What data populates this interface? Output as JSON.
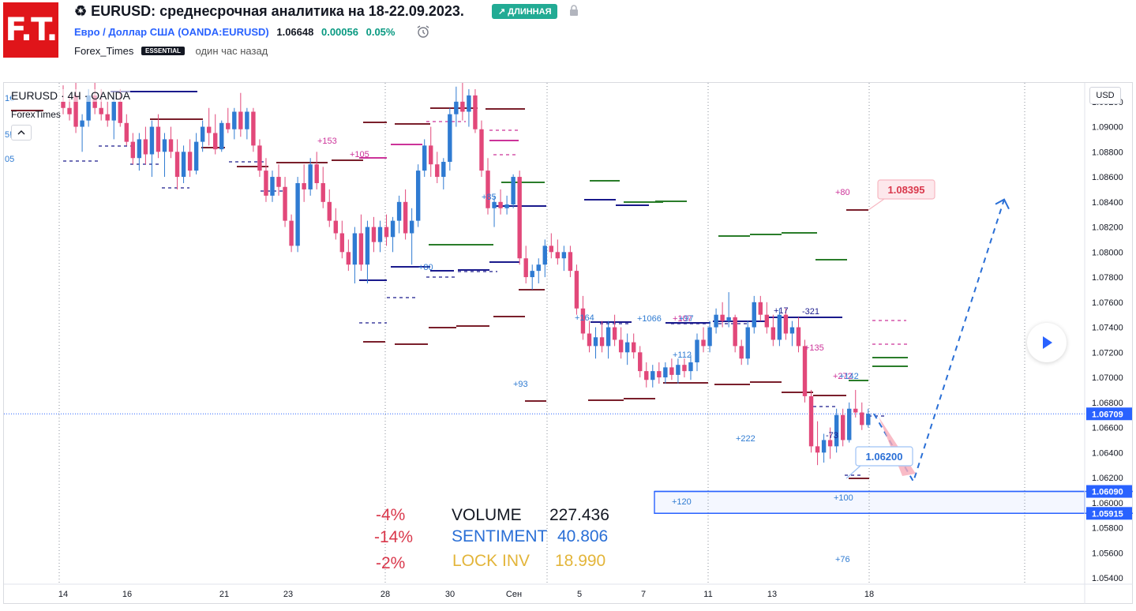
{
  "header": {
    "logo_text": "F.T.",
    "title": "♻ EURUSD: среднесрочная аналитика на 18-22.09.2023.",
    "badge": "↗ ДЛИННАЯ",
    "symbol_name": "Евро / Доллар США",
    "ticker": "(OANDA:EURUSD)",
    "price": "1.06648",
    "change": "0.00056",
    "change_pct": "0.05%",
    "author": "Forex_Times",
    "author_badge": "ESSENTIAL",
    "posted": "один час назад"
  },
  "chart_overlay": {
    "symbol_label": "EURUSD · 4Ч · OANDA",
    "author_label": "ForexTimes",
    "currency_button": "USD",
    "left_fragments": [
      "1€",
      "5!",
      "05"
    ]
  },
  "colors": {
    "up": "#2f7bd2",
    "down": "#e2487a",
    "price_line": "#2962ff",
    "navy": "#1a1a8c",
    "maroon": "#7a1f2b",
    "green": "#2a7d2a",
    "magenta": "#cc3399",
    "projection": "#2a6fd6"
  },
  "chart_data": {
    "type": "candlestick",
    "timeframe": "4Ч",
    "ylim": [
      1.0535,
      1.0935
    ],
    "y_ticks": [
      "1.09200",
      "1.09000",
      "1.08800",
      "1.08600",
      "1.08400",
      "1.08200",
      "1.08000",
      "1.07800",
      "1.07600",
      "1.07400",
      "1.07200",
      "1.07000",
      "1.06800",
      "1.06600",
      "1.06400",
      "1.06200",
      "1.06000",
      "1.05800",
      "1.05600",
      "1.05400"
    ],
    "x_ticks": [
      "14",
      "16",
      "21",
      "23",
      "28",
      "30",
      "Сен",
      "5",
      "7",
      "11",
      "13",
      "18"
    ],
    "current_price": "1.06709",
    "zone": {
      "upper": "1.06090",
      "lower": "1.05915",
      "upper_value": 1.0609,
      "lower_value": 1.05915
    },
    "callouts": [
      {
        "text": "1.08395",
        "value": 1.08395
      },
      {
        "text": "1.06200",
        "value": 1.062
      }
    ],
    "projection": [
      {
        "date": "2023-09-18",
        "value": 1.0671
      },
      {
        "date": "2023-09-19",
        "value": 1.0617
      },
      {
        "date": "2023-09-22",
        "value": 1.0842
      }
    ],
    "level_labels": [
      {
        "text": "+153",
        "color": "#cc3399"
      },
      {
        "text": "+105",
        "color": "#cc3399"
      },
      {
        "text": "+85",
        "color": "#2f7bd2"
      },
      {
        "text": "+80",
        "color": "#2f7bd2"
      },
      {
        "text": "+164",
        "color": "#2f7bd2"
      },
      {
        "text": "+1066",
        "color": "#2f7bd2"
      },
      {
        "text": "+107",
        "color": "#cc3399"
      },
      {
        "text": "+97",
        "color": "#2f7bd2"
      },
      {
        "text": "+112",
        "color": "#2f7bd2"
      },
      {
        "text": "+93",
        "color": "#2f7bd2"
      },
      {
        "text": "+222",
        "color": "#2f7bd2"
      },
      {
        "text": "+17",
        "color": "#1a1a8c"
      },
      {
        "text": "-321",
        "color": "#1a1a8c"
      },
      {
        "text": "+135",
        "color": "#cc3399"
      },
      {
        "text": "+272",
        "color": "#cc3399"
      },
      {
        "text": "+142",
        "color": "#2f7bd2"
      },
      {
        "text": "-73",
        "color": "#1a1a8c"
      },
      {
        "text": "+80",
        "color": "#cc3399"
      },
      {
        "text": "+120",
        "color": "#2f7bd2"
      },
      {
        "text": "+100",
        "color": "#2f7bd2"
      },
      {
        "text": "+76",
        "color": "#2f7bd2"
      }
    ],
    "candles": [
      {
        "o": 1.092,
        "h": 1.0933,
        "l": 1.091,
        "c": 1.0915
      },
      {
        "o": 1.0915,
        "h": 1.0925,
        "l": 1.0905,
        "c": 1.091
      },
      {
        "o": 1.0925,
        "h": 1.0935,
        "l": 1.0895,
        "c": 1.09
      },
      {
        "o": 1.09,
        "h": 1.091,
        "l": 1.088,
        "c": 1.0905
      },
      {
        "o": 1.0905,
        "h": 1.093,
        "l": 1.09,
        "c": 1.0925
      },
      {
        "o": 1.0925,
        "h": 1.0935,
        "l": 1.091,
        "c": 1.0915
      },
      {
        "o": 1.0915,
        "h": 1.093,
        "l": 1.0905,
        "c": 1.091
      },
      {
        "o": 1.091,
        "h": 1.092,
        "l": 1.09,
        "c": 1.0905
      },
      {
        "o": 1.0905,
        "h": 1.0925,
        "l": 1.089,
        "c": 1.092
      },
      {
        "o": 1.092,
        "h": 1.093,
        "l": 1.09,
        "c": 1.0903
      },
      {
        "o": 1.0903,
        "h": 1.091,
        "l": 1.0885,
        "c": 1.0888
      },
      {
        "o": 1.0888,
        "h": 1.0895,
        "l": 1.087,
        "c": 1.0875
      },
      {
        "o": 1.0875,
        "h": 1.0895,
        "l": 1.0865,
        "c": 1.089
      },
      {
        "o": 1.089,
        "h": 1.09,
        "l": 1.087,
        "c": 1.0878
      },
      {
        "o": 1.0878,
        "h": 1.0905,
        "l": 1.086,
        "c": 1.09
      },
      {
        "o": 1.09,
        "h": 1.091,
        "l": 1.0875,
        "c": 1.088
      },
      {
        "o": 1.088,
        "h": 1.0895,
        "l": 1.086,
        "c": 1.089
      },
      {
        "o": 1.089,
        "h": 1.09,
        "l": 1.0875,
        "c": 1.088
      },
      {
        "o": 1.088,
        "h": 1.089,
        "l": 1.085,
        "c": 1.086
      },
      {
        "o": 1.086,
        "h": 1.0885,
        "l": 1.0855,
        "c": 1.088
      },
      {
        "o": 1.088,
        "h": 1.089,
        "l": 1.086,
        "c": 1.0865
      },
      {
        "o": 1.0865,
        "h": 1.0895,
        "l": 1.0862,
        "c": 1.0888
      },
      {
        "o": 1.0888,
        "h": 1.0905,
        "l": 1.088,
        "c": 1.09
      },
      {
        "o": 1.09,
        "h": 1.0915,
        "l": 1.0885,
        "c": 1.0895
      },
      {
        "o": 1.0895,
        "h": 1.091,
        "l": 1.0878,
        "c": 1.0882
      },
      {
        "o": 1.0882,
        "h": 1.0905,
        "l": 1.088,
        "c": 1.0903
      },
      {
        "o": 1.0903,
        "h": 1.0915,
        "l": 1.0895,
        "c": 1.0898
      },
      {
        "o": 1.0898,
        "h": 1.0915,
        "l": 1.089,
        "c": 1.0912
      },
      {
        "o": 1.0912,
        "h": 1.0927,
        "l": 1.0892,
        "c": 1.0898
      },
      {
        "o": 1.0898,
        "h": 1.0915,
        "l": 1.089,
        "c": 1.0912
      },
      {
        "o": 1.0912,
        "h": 1.0915,
        "l": 1.088,
        "c": 1.0885
      },
      {
        "o": 1.0885,
        "h": 1.089,
        "l": 1.086,
        "c": 1.0865
      },
      {
        "o": 1.0865,
        "h": 1.0875,
        "l": 1.084,
        "c": 1.0845
      },
      {
        "o": 1.0845,
        "h": 1.0865,
        "l": 1.084,
        "c": 1.086
      },
      {
        "o": 1.086,
        "h": 1.087,
        "l": 1.0845,
        "c": 1.0852
      },
      {
        "o": 1.0852,
        "h": 1.086,
        "l": 1.082,
        "c": 1.0825
      },
      {
        "o": 1.0825,
        "h": 1.083,
        "l": 1.08,
        "c": 1.0805
      },
      {
        "o": 1.0805,
        "h": 1.086,
        "l": 1.08,
        "c": 1.0855
      },
      {
        "o": 1.0855,
        "h": 1.087,
        "l": 1.084,
        "c": 1.085
      },
      {
        "o": 1.085,
        "h": 1.0875,
        "l": 1.0845,
        "c": 1.087
      },
      {
        "o": 1.087,
        "h": 1.088,
        "l": 1.085,
        "c": 1.0855
      },
      {
        "o": 1.0855,
        "h": 1.0868,
        "l": 1.0835,
        "c": 1.084
      },
      {
        "o": 1.084,
        "h": 1.085,
        "l": 1.082,
        "c": 1.0825
      },
      {
        "o": 1.0825,
        "h": 1.0835,
        "l": 1.081,
        "c": 1.0815
      },
      {
        "o": 1.0815,
        "h": 1.0825,
        "l": 1.0795,
        "c": 1.08
      },
      {
        "o": 1.08,
        "h": 1.081,
        "l": 1.0785,
        "c": 1.079
      },
      {
        "o": 1.079,
        "h": 1.082,
        "l": 1.0775,
        "c": 1.0815
      },
      {
        "o": 1.0815,
        "h": 1.083,
        "l": 1.0785,
        "c": 1.079
      },
      {
        "o": 1.079,
        "h": 1.0825,
        "l": 1.0775,
        "c": 1.082
      },
      {
        "o": 1.082,
        "h": 1.0828,
        "l": 1.08,
        "c": 1.0808
      },
      {
        "o": 1.0808,
        "h": 1.0825,
        "l": 1.08,
        "c": 1.082
      },
      {
        "o": 1.082,
        "h": 1.083,
        "l": 1.0805,
        "c": 1.0812
      },
      {
        "o": 1.0812,
        "h": 1.0828,
        "l": 1.08,
        "c": 1.0825
      },
      {
        "o": 1.0825,
        "h": 1.0845,
        "l": 1.0815,
        "c": 1.084
      },
      {
        "o": 1.084,
        "h": 1.085,
        "l": 1.081,
        "c": 1.0815
      },
      {
        "o": 1.0815,
        "h": 1.0835,
        "l": 1.079,
        "c": 1.0825
      },
      {
        "o": 1.0825,
        "h": 1.087,
        "l": 1.082,
        "c": 1.0865
      },
      {
        "o": 1.0865,
        "h": 1.089,
        "l": 1.086,
        "c": 1.0885
      },
      {
        "o": 1.0885,
        "h": 1.09,
        "l": 1.086,
        "c": 1.087
      },
      {
        "o": 1.087,
        "h": 1.088,
        "l": 1.0855,
        "c": 1.086
      },
      {
        "o": 1.086,
        "h": 1.0875,
        "l": 1.085,
        "c": 1.0872
      },
      {
        "o": 1.0872,
        "h": 1.0915,
        "l": 1.0865,
        "c": 1.091
      },
      {
        "o": 1.091,
        "h": 1.0932,
        "l": 1.09,
        "c": 1.092
      },
      {
        "o": 1.092,
        "h": 1.0935,
        "l": 1.0905,
        "c": 1.0912
      },
      {
        "o": 1.0912,
        "h": 1.093,
        "l": 1.09,
        "c": 1.0925
      },
      {
        "o": 1.0925,
        "h": 1.093,
        "l": 1.0895,
        "c": 1.0898
      },
      {
        "o": 1.0898,
        "h": 1.0905,
        "l": 1.086,
        "c": 1.0865
      },
      {
        "o": 1.0865,
        "h": 1.0875,
        "l": 1.083,
        "c": 1.0835
      },
      {
        "o": 1.0835,
        "h": 1.0845,
        "l": 1.082,
        "c": 1.084
      },
      {
        "o": 1.084,
        "h": 1.085,
        "l": 1.083,
        "c": 1.0835
      },
      {
        "o": 1.0835,
        "h": 1.0845,
        "l": 1.083,
        "c": 1.0838
      },
      {
        "o": 1.0838,
        "h": 1.0862,
        "l": 1.0835,
        "c": 1.086
      },
      {
        "o": 1.086,
        "h": 1.0865,
        "l": 1.079,
        "c": 1.0795
      },
      {
        "o": 1.0795,
        "h": 1.0805,
        "l": 1.0775,
        "c": 1.078
      },
      {
        "o": 1.078,
        "h": 1.079,
        "l": 1.077,
        "c": 1.0785
      },
      {
        "o": 1.0785,
        "h": 1.0795,
        "l": 1.0775,
        "c": 1.079
      },
      {
        "o": 1.079,
        "h": 1.081,
        "l": 1.078,
        "c": 1.0805
      },
      {
        "o": 1.0805,
        "h": 1.0815,
        "l": 1.0795,
        "c": 1.08
      },
      {
        "o": 1.08,
        "h": 1.081,
        "l": 1.079,
        "c": 1.0795
      },
      {
        "o": 1.0795,
        "h": 1.0805,
        "l": 1.0785,
        "c": 1.08
      },
      {
        "o": 1.08,
        "h": 1.0805,
        "l": 1.078,
        "c": 1.0785
      },
      {
        "o": 1.0785,
        "h": 1.079,
        "l": 1.075,
        "c": 1.0755
      },
      {
        "o": 1.0755,
        "h": 1.0765,
        "l": 1.073,
        "c": 1.0735
      },
      {
        "o": 1.0735,
        "h": 1.0745,
        "l": 1.072,
        "c": 1.0725
      },
      {
        "o": 1.0725,
        "h": 1.074,
        "l": 1.0715,
        "c": 1.0732
      },
      {
        "o": 1.0732,
        "h": 1.0745,
        "l": 1.072,
        "c": 1.0725
      },
      {
        "o": 1.0725,
        "h": 1.0745,
        "l": 1.0715,
        "c": 1.074
      },
      {
        "o": 1.074,
        "h": 1.075,
        "l": 1.0725,
        "c": 1.073
      },
      {
        "o": 1.073,
        "h": 1.074,
        "l": 1.0715,
        "c": 1.072
      },
      {
        "o": 1.072,
        "h": 1.0735,
        "l": 1.071,
        "c": 1.0728
      },
      {
        "o": 1.0728,
        "h": 1.0735,
        "l": 1.0715,
        "c": 1.072
      },
      {
        "o": 1.072,
        "h": 1.0725,
        "l": 1.07,
        "c": 1.0705
      },
      {
        "o": 1.0705,
        "h": 1.0712,
        "l": 1.0692,
        "c": 1.0698
      },
      {
        "o": 1.0698,
        "h": 1.071,
        "l": 1.0692,
        "c": 1.0705
      },
      {
        "o": 1.0705,
        "h": 1.0712,
        "l": 1.0695,
        "c": 1.07
      },
      {
        "o": 1.07,
        "h": 1.0712,
        "l": 1.0695,
        "c": 1.0708
      },
      {
        "o": 1.0708,
        "h": 1.0715,
        "l": 1.0698,
        "c": 1.0702
      },
      {
        "o": 1.0702,
        "h": 1.0715,
        "l": 1.0695,
        "c": 1.071
      },
      {
        "o": 1.071,
        "h": 1.0715,
        "l": 1.07,
        "c": 1.0705
      },
      {
        "o": 1.0705,
        "h": 1.0718,
        "l": 1.0698,
        "c": 1.0712
      },
      {
        "o": 1.0712,
        "h": 1.0735,
        "l": 1.0705,
        "c": 1.073
      },
      {
        "o": 1.073,
        "h": 1.074,
        "l": 1.072,
        "c": 1.0725
      },
      {
        "o": 1.0725,
        "h": 1.0745,
        "l": 1.072,
        "c": 1.074
      },
      {
        "o": 1.074,
        "h": 1.0755,
        "l": 1.0735,
        "c": 1.075
      },
      {
        "o": 1.075,
        "h": 1.076,
        "l": 1.074,
        "c": 1.0745
      },
      {
        "o": 1.0745,
        "h": 1.0768,
        "l": 1.074,
        "c": 1.0748
      },
      {
        "o": 1.0748,
        "h": 1.075,
        "l": 1.072,
        "c": 1.0725
      },
      {
        "o": 1.0725,
        "h": 1.073,
        "l": 1.071,
        "c": 1.0715
      },
      {
        "o": 1.0715,
        "h": 1.0745,
        "l": 1.071,
        "c": 1.074
      },
      {
        "o": 1.074,
        "h": 1.0765,
        "l": 1.0735,
        "c": 1.076
      },
      {
        "o": 1.076,
        "h": 1.0765,
        "l": 1.0745,
        "c": 1.075
      },
      {
        "o": 1.075,
        "h": 1.076,
        "l": 1.0735,
        "c": 1.074
      },
      {
        "o": 1.074,
        "h": 1.075,
        "l": 1.0725,
        "c": 1.073
      },
      {
        "o": 1.073,
        "h": 1.0755,
        "l": 1.0725,
        "c": 1.075
      },
      {
        "o": 1.075,
        "h": 1.0755,
        "l": 1.073,
        "c": 1.0735
      },
      {
        "o": 1.0735,
        "h": 1.0745,
        "l": 1.0725,
        "c": 1.074
      },
      {
        "o": 1.074,
        "h": 1.0748,
        "l": 1.072,
        "c": 1.0725
      },
      {
        "o": 1.0725,
        "h": 1.073,
        "l": 1.068,
        "c": 1.0685
      },
      {
        "o": 1.0685,
        "h": 1.069,
        "l": 1.064,
        "c": 1.0645
      },
      {
        "o": 1.0645,
        "h": 1.0665,
        "l": 1.063,
        "c": 1.064
      },
      {
        "o": 1.064,
        "h": 1.0655,
        "l": 1.0632,
        "c": 1.065
      },
      {
        "o": 1.065,
        "h": 1.066,
        "l": 1.0635,
        "c": 1.0645
      },
      {
        "o": 1.0645,
        "h": 1.0675,
        "l": 1.064,
        "c": 1.067
      },
      {
        "o": 1.067,
        "h": 1.0675,
        "l": 1.0645,
        "c": 1.065
      },
      {
        "o": 1.065,
        "h": 1.068,
        "l": 1.0648,
        "c": 1.0675
      },
      {
        "o": 1.0675,
        "h": 1.069,
        "l": 1.0668,
        "c": 1.0672
      },
      {
        "o": 1.0672,
        "h": 1.068,
        "l": 1.0658,
        "c": 1.0662
      },
      {
        "o": 1.0662,
        "h": 1.0675,
        "l": 1.066,
        "c": 1.0671
      }
    ]
  },
  "stats": {
    "volume": {
      "label": "VOLUME",
      "value": "227.436",
      "pct": "-4%"
    },
    "sentiment": {
      "label": "SENTIMENT",
      "value": "40.806",
      "pct": "-14%"
    },
    "lock_inv": {
      "label": "LOCK INV",
      "value": "18.990",
      "pct": "-2%"
    },
    "colors": {
      "pct": "#d9374b",
      "volume": "#131722",
      "sentiment": "#2a6fd6",
      "lock_inv": "#e3b53a"
    }
  }
}
